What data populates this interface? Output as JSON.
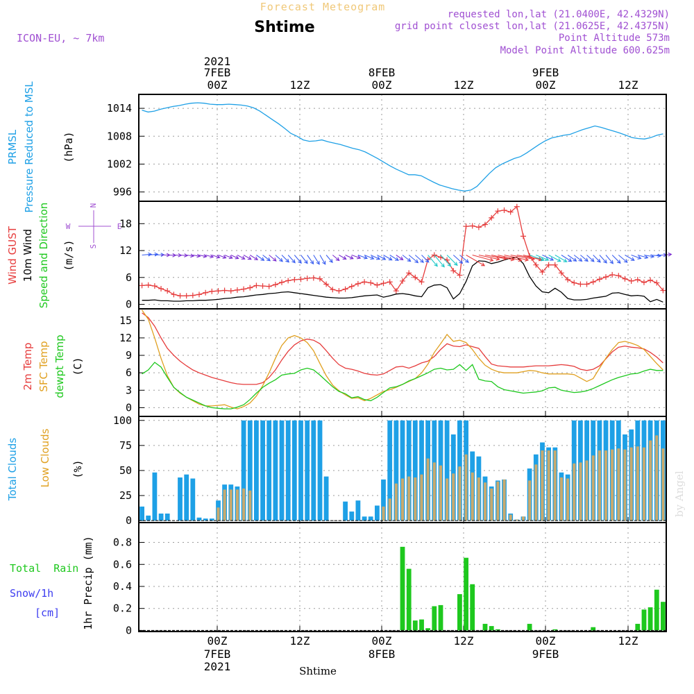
{
  "header": {
    "forecast_title": "Forecast Meteogram",
    "location_name": "Shtime",
    "model": "ICON-EU, ~ 7km",
    "requested": "requested lon,lat (21.0400E, 42.4329N)",
    "grid_point": "grid point closest lon,lat (21.0625E, 42.4375N)",
    "point_altitude": "Point Altitude 573m",
    "model_altitude": "Model Point Altitude 600.625m",
    "watermark": "by Angel",
    "footer_name": "Shtime"
  },
  "colors": {
    "cyan": "#1ea0e6",
    "red": "#e63c3c",
    "orange": "#e0a020",
    "green": "#1ec81e",
    "purple": "#a050d2",
    "blue": "#3c3cf0",
    "tan": "#c8aa6e",
    "grid": "#9a9a9a",
    "title_orange": "#f0c878"
  },
  "time_axis": {
    "top_year": "2021",
    "bottom_year": "2021",
    "hour_ticks": [
      "00Z",
      "12Z",
      "00Z",
      "12Z",
      "00Z",
      "12Z"
    ],
    "date_labels": [
      "7FEB",
      "8FEB",
      "9FEB"
    ]
  },
  "chart_data": [
    {
      "type": "line",
      "title": "Pressure Reduced to MSL",
      "label_main": "PRMSL",
      "label_sub": "Pressure Reduced to MSL",
      "unit": "(hPa)",
      "ylim": [
        994,
        1017
      ],
      "yticks": [
        "996",
        "1002",
        "1008",
        "1014"
      ],
      "series": [
        {
          "name": "PRMSL",
          "color_key": "cyan",
          "values": [
            1013.6,
            1013.2,
            1013.4,
            1013.8,
            1014.1,
            1014.4,
            1014.6,
            1014.9,
            1015.1,
            1015.2,
            1015.1,
            1014.9,
            1014.8,
            1014.8,
            1014.9,
            1014.8,
            1014.7,
            1014.5,
            1014.1,
            1013.4,
            1012.5,
            1011.6,
            1010.7,
            1009.7,
            1008.6,
            1008.0,
            1007.2,
            1006.9,
            1007.0,
            1007.2,
            1006.8,
            1006.5,
            1006.2,
            1005.8,
            1005.4,
            1005.1,
            1004.6,
            1003.9,
            1003.2,
            1002.4,
            1001.6,
            1000.9,
            1000.3,
            999.7,
            999.7,
            999.5,
            998.8,
            998.1,
            997.5,
            997.1,
            996.7,
            996.4,
            996.2,
            996.4,
            997.2,
            998.6,
            1000.0,
            1001.2,
            1002.0,
            1002.6,
            1003.2,
            1003.6,
            1004.4,
            1005.3,
            1006.2,
            1007.0,
            1007.6,
            1007.9,
            1008.2,
            1008.4,
            1008.9,
            1009.4,
            1009.8,
            1010.2,
            1009.9,
            1009.5,
            1009.1,
            1008.7,
            1008.2,
            1007.7,
            1007.5,
            1007.4,
            1007.7,
            1008.2,
            1008.5
          ]
        }
      ]
    },
    {
      "type": "line",
      "title": "10m Wind Speed and Direction",
      "label_gust": "Wind GUST",
      "label_wind": "10m Wind",
      "label_dir": "Speed and Direction",
      "unit": "(m/s)",
      "compass_w": "W",
      "compass_n": "N",
      "compass_s": "S",
      "compass_e": "E",
      "ylim": [
        -1,
        23
      ],
      "yticks": [
        "0",
        "6",
        "12",
        "18"
      ],
      "series": [
        {
          "name": "Wind GUST",
          "color_key": "red",
          "marker": "+",
          "values": [
            4.2,
            4.3,
            4.1,
            3.5,
            3.0,
            2.2,
            1.9,
            1.9,
            2.0,
            2.2,
            2.6,
            2.9,
            3.0,
            3.1,
            3.0,
            3.2,
            3.4,
            3.7,
            4.2,
            4.1,
            4.0,
            4.4,
            4.9,
            5.3,
            5.5,
            5.6,
            5.8,
            5.9,
            5.7,
            4.5,
            3.3,
            3.0,
            3.4,
            4.0,
            4.6,
            5.0,
            4.8,
            4.3,
            4.7,
            5.0,
            3.0,
            5.2,
            7.0,
            6.0,
            5.0,
            10.0,
            11.0,
            10.5,
            9.9,
            7.5,
            6.5,
            17.4,
            17.5,
            17.2,
            17.8,
            19.3,
            20.8,
            21.0,
            20.6,
            21.8,
            15.2,
            10.8,
            8.8,
            7.2,
            8.8,
            8.8,
            7.0,
            5.5,
            4.8,
            4.5,
            4.5,
            5.0,
            5.6,
            6.1,
            6.6,
            6.4,
            5.7,
            5.2,
            5.5,
            4.9,
            5.4,
            4.8,
            3.1
          ]
        },
        {
          "name": "10m Wind",
          "color_key": "black",
          "values": [
            0.9,
            0.9,
            1.0,
            0.8,
            0.8,
            0.7,
            0.7,
            0.8,
            0.8,
            0.9,
            0.9,
            1.0,
            1.1,
            1.3,
            1.4,
            1.6,
            1.7,
            1.9,
            2.1,
            2.2,
            2.4,
            2.5,
            2.7,
            2.8,
            2.6,
            2.4,
            2.2,
            2.0,
            1.8,
            1.6,
            1.5,
            1.4,
            1.4,
            1.5,
            1.7,
            1.9,
            2.0,
            2.1,
            1.6,
            1.9,
            2.3,
            2.4,
            2.2,
            1.9,
            1.7,
            3.7,
            4.3,
            4.4,
            3.7,
            1.2,
            2.4,
            5.1,
            8.6,
            9.7,
            9.6,
            9.1,
            9.4,
            9.9,
            10.3,
            10.5,
            9.1,
            6.2,
            4.1,
            2.8,
            2.6,
            3.6,
            2.7,
            1.3,
            1.0,
            1.0,
            1.1,
            1.4,
            1.6,
            1.8,
            2.5,
            2.6,
            2.2,
            1.9,
            2.0,
            1.8,
            0.6,
            1.1,
            0.5
          ]
        }
      ],
      "arrow_direction_deg": [
        265,
        265,
        268,
        270,
        272,
        272,
        275,
        278,
        280,
        282,
        285,
        288,
        290,
        292,
        295,
        298,
        300,
        302,
        305,
        308,
        310,
        312,
        315,
        318,
        320,
        322,
        325,
        328,
        330,
        320,
        310,
        300,
        295,
        290,
        290,
        292,
        295,
        298,
        300,
        302,
        305,
        308,
        310,
        312,
        315,
        320,
        320,
        318,
        315,
        312,
        310,
        300,
        285,
        282,
        280,
        282,
        283,
        282,
        280,
        280,
        285,
        290,
        292,
        295,
        298,
        300,
        302,
        305,
        308,
        310,
        312,
        315,
        318,
        320,
        315,
        310,
        300,
        290,
        285,
        280,
        275,
        270,
        265
      ]
    },
    {
      "type": "line",
      "title": "Temperatures",
      "label_temp": "2m Temp",
      "label_sfc": "SFC Temp",
      "label_dew": "dewpt Temp",
      "unit": "(C)",
      "ylim": [
        -1.5,
        17
      ],
      "yticks": [
        "0",
        "3",
        "6",
        "9",
        "12",
        "15"
      ],
      "series": [
        {
          "name": "2m Temp",
          "color_key": "red",
          "values": [
            16.3,
            15.5,
            14.0,
            12.0,
            10.2,
            9.0,
            8.0,
            7.2,
            6.5,
            6.0,
            5.6,
            5.2,
            4.9,
            4.6,
            4.3,
            4.1,
            4.0,
            4.0,
            4.0,
            4.3,
            5.2,
            6.5,
            8.2,
            9.7,
            10.8,
            11.5,
            11.8,
            11.6,
            11.0,
            9.8,
            8.5,
            7.4,
            6.8,
            6.6,
            6.3,
            5.9,
            5.7,
            5.6,
            5.8,
            6.4,
            7.0,
            7.1,
            6.8,
            7.2,
            7.7,
            8.0,
            8.8,
            10.0,
            11.0,
            10.6,
            10.5,
            10.8,
            10.5,
            10.2,
            8.8,
            7.5,
            7.2,
            7.1,
            7.0,
            7.0,
            7.0,
            7.1,
            7.2,
            7.2,
            7.2,
            7.3,
            7.4,
            7.3,
            7.1,
            6.6,
            6.4,
            6.6,
            7.2,
            8.4,
            9.6,
            10.4,
            10.6,
            10.4,
            10.3,
            10.1,
            9.5,
            8.7,
            7.7
          ]
        },
        {
          "name": "SFC Temp",
          "color_key": "orange",
          "values": [
            16.8,
            15.2,
            12.0,
            8.5,
            5.5,
            3.5,
            2.5,
            1.8,
            1.2,
            0.6,
            0.3,
            0.3,
            0.4,
            0.5,
            0.1,
            -0.2,
            0.2,
            0.8,
            2.0,
            3.8,
            6.0,
            8.5,
            10.7,
            12.0,
            12.4,
            12.0,
            11.2,
            9.8,
            7.6,
            5.5,
            3.9,
            2.9,
            2.2,
            1.6,
            1.7,
            1.2,
            1.6,
            2.2,
            2.8,
            3.1,
            3.5,
            4.0,
            4.5,
            5.0,
            6.0,
            7.5,
            9.5,
            11.0,
            12.6,
            11.4,
            11.6,
            11.2,
            10.0,
            8.5,
            7.3,
            6.6,
            6.2,
            6.0,
            6.0,
            6.0,
            6.2,
            6.4,
            6.3,
            6.0,
            5.8,
            5.8,
            5.8,
            5.8,
            5.7,
            5.1,
            4.5,
            5.0,
            6.8,
            8.5,
            10.0,
            11.2,
            11.4,
            11.1,
            10.7,
            10.0,
            8.8,
            7.6,
            6.5
          ]
        },
        {
          "name": "dewpt Temp",
          "color_key": "green",
          "values": [
            5.8,
            6.5,
            7.8,
            7.0,
            5.2,
            3.5,
            2.6,
            1.8,
            1.3,
            0.8,
            0.3,
            0.0,
            -0.1,
            -0.2,
            -0.2,
            0.1,
            0.5,
            1.4,
            2.5,
            3.5,
            4.2,
            4.8,
            5.6,
            5.8,
            5.9,
            6.5,
            6.8,
            6.5,
            5.6,
            4.6,
            3.6,
            2.8,
            2.4,
            1.7,
            1.9,
            1.4,
            1.2,
            1.8,
            2.6,
            3.4,
            3.6,
            4.0,
            4.6,
            5.0,
            5.5,
            6.0,
            6.6,
            6.8,
            6.5,
            6.6,
            7.4,
            6.4,
            7.4,
            4.9,
            4.6,
            4.5,
            3.6,
            3.1,
            2.9,
            2.7,
            2.5,
            2.6,
            2.7,
            2.9,
            3.4,
            3.5,
            3.0,
            2.8,
            2.6,
            2.7,
            2.9,
            3.3,
            3.8,
            4.3,
            4.8,
            5.2,
            5.5,
            5.8,
            5.9,
            6.3,
            6.6,
            6.4,
            6.4
          ]
        }
      ]
    },
    {
      "type": "bar",
      "title": "Clouds",
      "label_total": "Total Clouds",
      "label_low": "Low Clouds",
      "unit": "(%)",
      "ylim": [
        -2,
        104
      ],
      "yticks": [
        "0",
        "25",
        "50",
        "75",
        "100"
      ],
      "series": [
        {
          "name": "Total Clouds",
          "color_key": "cyan",
          "values": [
            14,
            5,
            48,
            7,
            7,
            0,
            43,
            46,
            42,
            3,
            2,
            2,
            20,
            36,
            36,
            34,
            100,
            100,
            100,
            100,
            100,
            100,
            100,
            100,
            100,
            100,
            100,
            100,
            100,
            44,
            0,
            0,
            19,
            9,
            20,
            4,
            4,
            15,
            41,
            100,
            100,
            100,
            100,
            100,
            100,
            100,
            100,
            100,
            100,
            86,
            100,
            100,
            69,
            64,
            44,
            34,
            40,
            41,
            7,
            1,
            4,
            52,
            66,
            78,
            73,
            73,
            48,
            46,
            100,
            100,
            100,
            100,
            100,
            100,
            100,
            100,
            86,
            91,
            100,
            100,
            100,
            100,
            100
          ]
        },
        {
          "name": "Low Clouds",
          "color_key": "tan",
          "values": [
            0,
            0,
            0,
            0,
            0,
            0,
            0,
            0,
            0,
            0,
            0,
            0,
            13,
            31,
            31,
            31,
            32,
            30,
            0,
            0,
            0,
            0,
            0,
            0,
            0,
            0,
            0,
            0,
            0,
            0,
            0,
            0,
            0,
            0,
            0,
            0,
            0,
            0,
            14,
            22,
            37,
            42,
            44,
            43,
            46,
            62,
            58,
            55,
            42,
            47,
            54,
            66,
            48,
            43,
            38,
            32,
            39,
            41,
            6,
            1,
            4,
            40,
            56,
            70,
            70,
            70,
            43,
            42,
            57,
            58,
            60,
            65,
            70,
            70,
            71,
            72,
            71,
            73,
            74,
            73,
            80,
            85,
            72
          ]
        }
      ]
    },
    {
      "type": "bar",
      "title": "1hr Precip (mm)",
      "label_rain": "Total  Rain",
      "label_snow": "Snow/1h",
      "label_snow_unit": "[cm]",
      "unit": "1hr Precip (mm)",
      "ylim": [
        -0.01,
        0.98
      ],
      "yticks": [
        "0",
        "0.2",
        "0.4",
        "0.6",
        "0.8"
      ],
      "series": [
        {
          "name": "Total Rain",
          "color_key": "green",
          "values": [
            0,
            0,
            0,
            0,
            0,
            0,
            0,
            0,
            0,
            0,
            0,
            0,
            0,
            0,
            0,
            0,
            0,
            0,
            0,
            0,
            0,
            0,
            0,
            0,
            0,
            0,
            0,
            0,
            0,
            0,
            0,
            0,
            0,
            0,
            0,
            0,
            0,
            0,
            0,
            0,
            0,
            0.76,
            0.56,
            0.09,
            0.1,
            0.02,
            0.22,
            0.23,
            0.0,
            0.0,
            0.33,
            0.66,
            0.42,
            0.0,
            0.06,
            0.04,
            0.01,
            0,
            0,
            0,
            0,
            0.06,
            0,
            0,
            0,
            0.01,
            0,
            0,
            0,
            0,
            0,
            0.03,
            0,
            0,
            0,
            0,
            0,
            0,
            0.06,
            0.19,
            0.21,
            0.37,
            0.26
          ]
        },
        {
          "name": "Snow/1h",
          "color_key": "blue",
          "values": [
            0,
            0,
            0,
            0,
            0,
            0,
            0,
            0,
            0,
            0,
            0,
            0,
            0,
            0,
            0,
            0,
            0,
            0,
            0,
            0,
            0,
            0,
            0,
            0,
            0,
            0,
            0,
            0,
            0,
            0,
            0,
            0,
            0,
            0,
            0,
            0,
            0,
            0,
            0,
            0,
            0,
            0,
            0,
            0,
            0,
            0,
            0,
            0,
            0,
            0,
            0,
            0,
            0,
            0,
            0,
            0,
            0,
            0,
            0,
            0,
            0,
            0,
            0,
            0,
            0,
            0,
            0,
            0,
            0,
            0,
            0,
            0,
            0,
            0,
            0,
            0,
            0,
            0,
            0,
            0,
            0,
            0,
            0
          ]
        }
      ]
    }
  ]
}
